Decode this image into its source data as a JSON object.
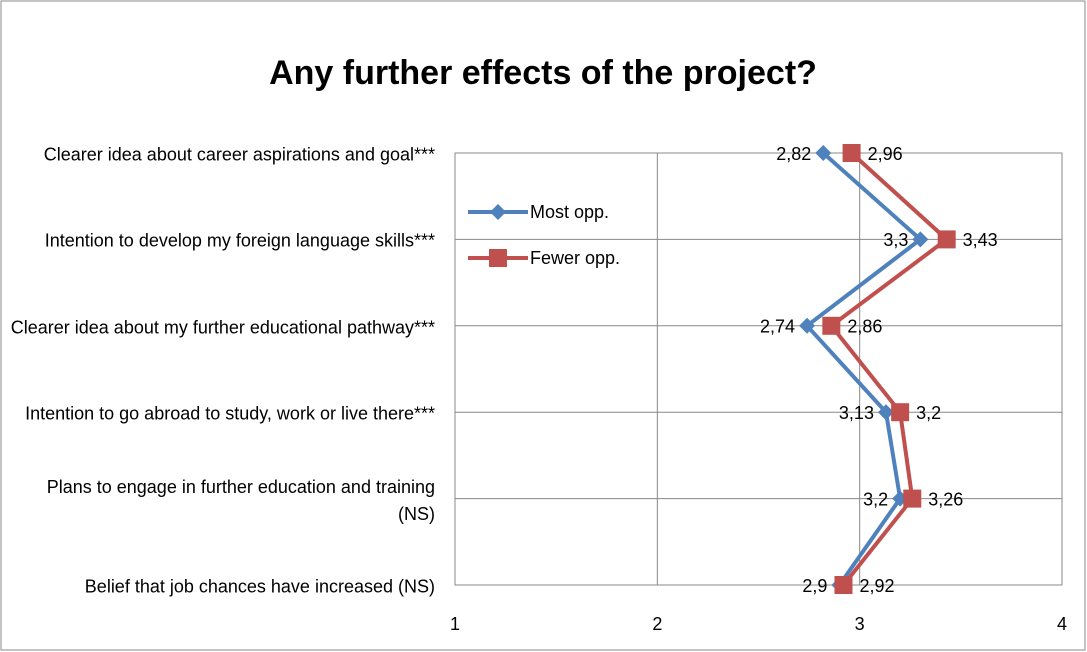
{
  "chart_data": {
    "type": "line",
    "orientation": "horizontal",
    "title": "Any further effects of the project?",
    "categories": [
      "Clearer idea about career aspirations and goal***",
      "Intention to develop my foreign language skills***",
      "Clearer idea about my further educational pathway***",
      "Intention to go abroad to study, work or live there***",
      "Plans to engage in further education and training (NS)",
      "Belief that job chances have increased (NS)"
    ],
    "series": [
      {
        "name": "Most opp.",
        "color": "#4f81bd",
        "marker": "diamond",
        "values": [
          2.82,
          3.3,
          2.74,
          3.13,
          3.2,
          2.9
        ],
        "value_labels": [
          "2,82",
          "3,3",
          "2,74",
          "3,13",
          "3,2",
          "2,9"
        ]
      },
      {
        "name": "Fewer opp.",
        "color": "#c0504d",
        "marker": "square",
        "values": [
          2.96,
          3.43,
          2.86,
          3.2,
          3.26,
          2.92
        ],
        "value_labels": [
          "2,96",
          "3,43",
          "2,86",
          "3,2",
          "3,26",
          "2,92"
        ]
      }
    ],
    "xlim": [
      1,
      4
    ],
    "xticks": [
      1,
      2,
      3,
      4
    ],
    "grid": true,
    "legend": "top-left"
  }
}
